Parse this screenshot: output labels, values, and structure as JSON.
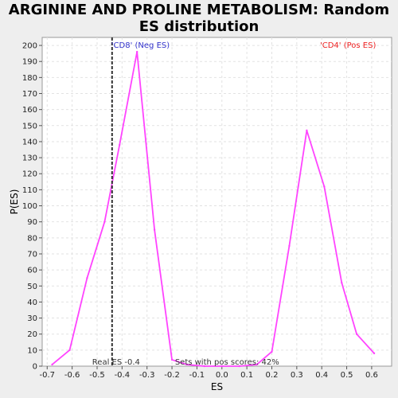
{
  "title_line1": "ARGININE AND PROLINE METABOLISM: Random",
  "title_line2": "ES distribution",
  "chart_data": {
    "type": "line",
    "xlabel": "ES",
    "ylabel": "P(ES)",
    "xlim": [
      -0.72,
      0.68
    ],
    "ylim": [
      0,
      205
    ],
    "xticks": [
      -0.7,
      -0.6,
      -0.5,
      -0.4,
      -0.3,
      -0.2,
      -0.1,
      0.0,
      0.1,
      0.2,
      0.3,
      0.4,
      0.5,
      0.6
    ],
    "xtick_labels": [
      "-0.7",
      "-0.6",
      "-0.5",
      "-0.4",
      "-0.3",
      "-0.2",
      "-0.1",
      "0.0",
      "0.1",
      "0.2",
      "0.3",
      "0.4",
      "0.5",
      "0.6"
    ],
    "yticks": [
      0,
      10,
      20,
      30,
      40,
      50,
      60,
      70,
      80,
      90,
      100,
      110,
      120,
      130,
      140,
      150,
      160,
      170,
      180,
      190,
      200
    ],
    "grid": true,
    "line_color": "#ff44ff",
    "series": [
      {
        "x": [
          -0.68,
          -0.61,
          -0.54,
          -0.47,
          -0.41,
          -0.34,
          -0.27,
          -0.2,
          -0.14,
          -0.07,
          0.0,
          0.07,
          0.14,
          0.2,
          0.27,
          0.34,
          0.41,
          0.48,
          0.54,
          0.61
        ],
        "y": [
          1,
          10,
          55,
          90,
          138,
          196,
          85,
          4,
          1,
          0,
          0,
          0,
          1,
          9,
          75,
          147,
          112,
          52,
          20,
          8
        ]
      }
    ],
    "real_es": -0.44,
    "real_es_label": "Real ES -0.4",
    "neg_label": "'CD8' (Neg ES)",
    "pos_label": "'CD4' (Pos ES)",
    "pos_scores_label": "Sets with pos scores: 42%",
    "neg_color": "#3333cc",
    "pos_color": "#ee2222"
  }
}
